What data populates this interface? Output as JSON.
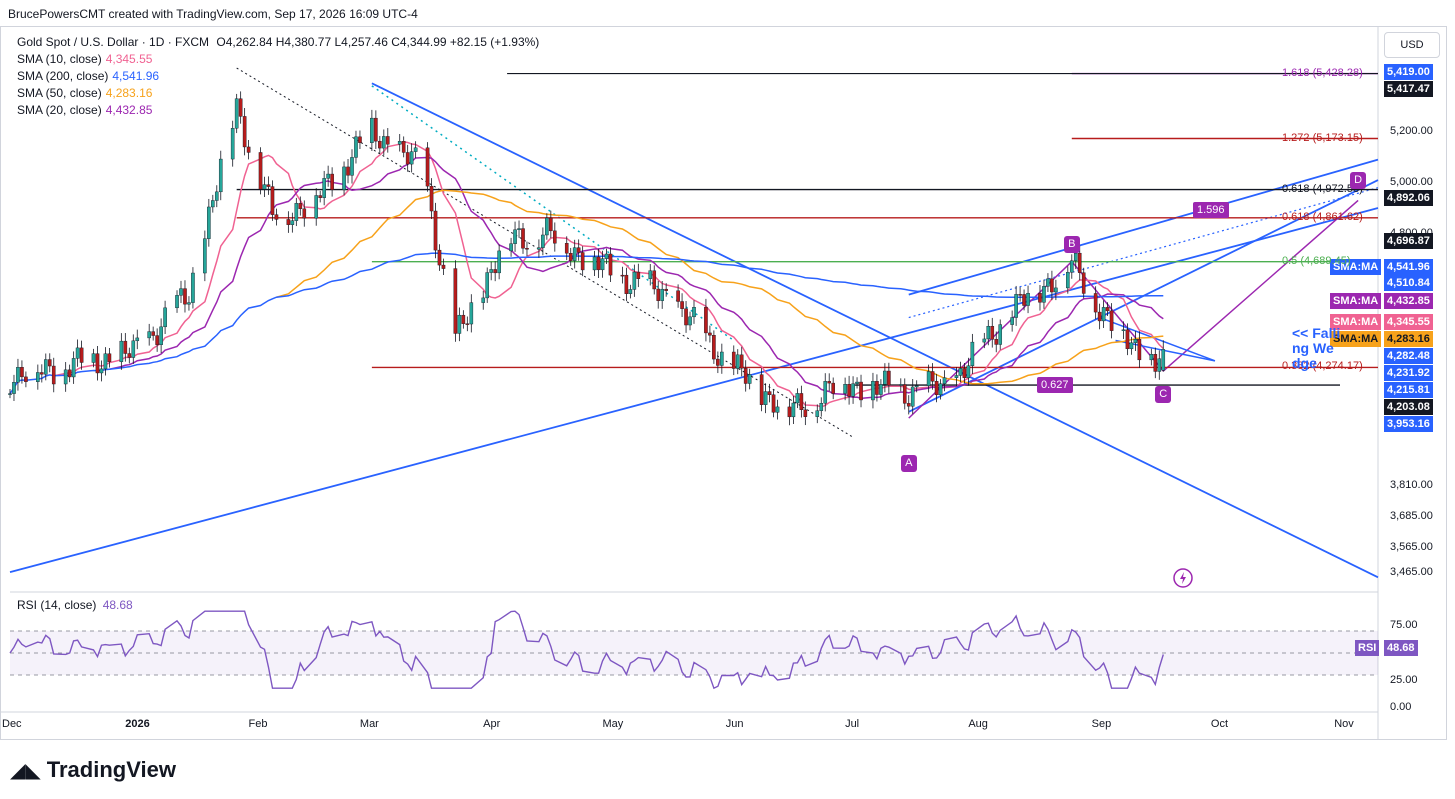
{
  "header": "BrucePowersCMT created with TradingView.com, Sep 17, 2026 16:09 UTC-4",
  "legend": {
    "title": "Gold Spot / U.S. Dollar · 1D · FXCM",
    "ohlc": "O4,262.84  H4,380.77  L4,257.46  C4,344.99  +82.15 (+1.93%)",
    "smas": [
      {
        "label": "SMA (10, close)",
        "value": "4,345.55",
        "color": "#f06292"
      },
      {
        "label": "SMA (200, close)",
        "value": "4,541.96",
        "color": "#2962ff"
      },
      {
        "label": "SMA (50, close)",
        "value": "4,283.16",
        "color": "#f7a21b"
      },
      {
        "label": "SMA (20, close)",
        "value": "4,432.85",
        "color": "#9c27b0"
      }
    ]
  },
  "rsi_legend": {
    "label": "RSI (14, close)",
    "value": "48.68"
  },
  "currency": "USD",
  "price_ticks": [
    "5,200.00",
    "5,000.00",
    "4,800.00",
    "3,810.00",
    "3,685.00",
    "3,565.00",
    "3,465.00"
  ],
  "rsi_ticks": [
    "75.00",
    "25.00",
    "0.00"
  ],
  "price_tags": [
    {
      "text": "5,419.00",
      "bg": "#2962ff",
      "fg": "#ffffff"
    },
    {
      "text": "5,417.47",
      "bg": "#131722",
      "fg": "#ffffff"
    },
    {
      "text": "4,892.06",
      "bg": "#131722",
      "fg": "#ffffff"
    },
    {
      "text": "4,696.87",
      "bg": "#131722",
      "fg": "#ffffff"
    },
    {
      "text": "SMA:MA",
      "bg": "#2962ff",
      "fg": "#ffffff"
    },
    {
      "text": "4,541.96",
      "bg": "#2962ff",
      "fg": "#ffffff"
    },
    {
      "text": "4,510.84",
      "bg": "#2962ff",
      "fg": "#ffffff"
    },
    {
      "text": "SMA:MA",
      "bg": "#9c27b0",
      "fg": "#ffffff"
    },
    {
      "text": "4,432.85",
      "bg": "#9c27b0",
      "fg": "#ffffff"
    },
    {
      "text": "SMA:MA",
      "bg": "#f06292",
      "fg": "#ffffff"
    },
    {
      "text": "4,345.55",
      "bg": "#f06292",
      "fg": "#ffffff"
    },
    {
      "text": "SMA:MA",
      "bg": "#f7a21b",
      "fg": "#131722"
    },
    {
      "text": "4,283.16",
      "bg": "#f7a21b",
      "fg": "#131722"
    },
    {
      "text": "4,282.48",
      "bg": "#2962ff",
      "fg": "#ffffff"
    },
    {
      "text": "4,231.92",
      "bg": "#2962ff",
      "fg": "#ffffff"
    },
    {
      "text": "4,215.81",
      "bg": "#2962ff",
      "fg": "#ffffff"
    },
    {
      "text": "4,203.08",
      "bg": "#131722",
      "fg": "#ffffff"
    },
    {
      "text": "3,953.16",
      "bg": "#2962ff",
      "fg": "#ffffff"
    },
    {
      "text": "RSI",
      "bg": "#7e57c2",
      "fg": "#ffffff"
    },
    {
      "text": "48.68",
      "bg": "#7e57c2",
      "fg": "#ffffff"
    }
  ],
  "fib_labels": [
    {
      "text": "1.618 (5,428.28)",
      "color": "#9c27b0"
    },
    {
      "text": "1.272 (5,173.15)",
      "color": "#b71c1c"
    },
    {
      "text": "0.618 (4,972.58)",
      "color": "#131722"
    },
    {
      "text": "0.618 (4,861.62)",
      "color": "#b71c1c"
    },
    {
      "text": "0.5 (4,689.45)",
      "color": "#4caf50"
    },
    {
      "text": "0.382 (4,274.17)",
      "color": "#b71c1c"
    }
  ],
  "annotations": {
    "ratio_1": "1.596",
    "ratio_2": "0.627",
    "pattern": "<< Falling Wedge"
  },
  "waves": [
    "A",
    "B",
    "C",
    "D"
  ],
  "x_ticks": [
    "Dec",
    "2026",
    "Feb",
    "Mar",
    "Apr",
    "May",
    "Jun",
    "Jul",
    "Aug",
    "Sep",
    "Oct",
    "Nov"
  ],
  "logo_text": "TradingView",
  "chart_data": {
    "type": "candlestick",
    "symbol": "Gold Spot / U.S. Dollar",
    "interval": "1D",
    "last_ohlc": {
      "open": 4262.84,
      "high": 4380.77,
      "low": 4257.46,
      "close": 4344.99,
      "change": 82.15,
      "change_pct": 1.93
    },
    "close_path": {
      "x": [
        "2025-12-01",
        "2025-12-15",
        "2026-01-01",
        "2026-01-15",
        "2026-01-27",
        "2026-02-05",
        "2026-02-15",
        "2026-03-02",
        "2026-03-15",
        "2026-03-23",
        "2026-04-05",
        "2026-04-15",
        "2026-05-01",
        "2026-05-15",
        "2026-06-01",
        "2026-06-15",
        "2026-06-28",
        "2026-07-15",
        "2026-07-25",
        "2026-08-10",
        "2026-08-25",
        "2026-09-05",
        "2026-09-15",
        "2026-09-17"
      ],
      "close": [
        4240,
        4280,
        4330,
        4560,
        5300,
        4870,
        4920,
        5200,
        5050,
        4380,
        4780,
        4800,
        4650,
        4560,
        4270,
        4100,
        4210,
        4180,
        4200,
        4500,
        4680,
        4420,
        4290,
        4345
      ]
    },
    "sma": {
      "sma10": {
        "last": 4345.55
      },
      "sma20": {
        "last": 4432.85
      },
      "sma50": {
        "last": 4283.16
      },
      "sma200": {
        "last": 4541.96
      }
    },
    "rsi": {
      "period": 14,
      "last": 48.68,
      "levels": [
        70,
        50,
        30
      ]
    },
    "fib_levels": [
      5428.28,
      5173.15,
      4972.58,
      4861.62,
      4689.45,
      4274.17
    ],
    "y_range": [
      3400,
      5560
    ],
    "x_range": [
      "2025-12-01",
      "2026-11-10"
    ]
  }
}
